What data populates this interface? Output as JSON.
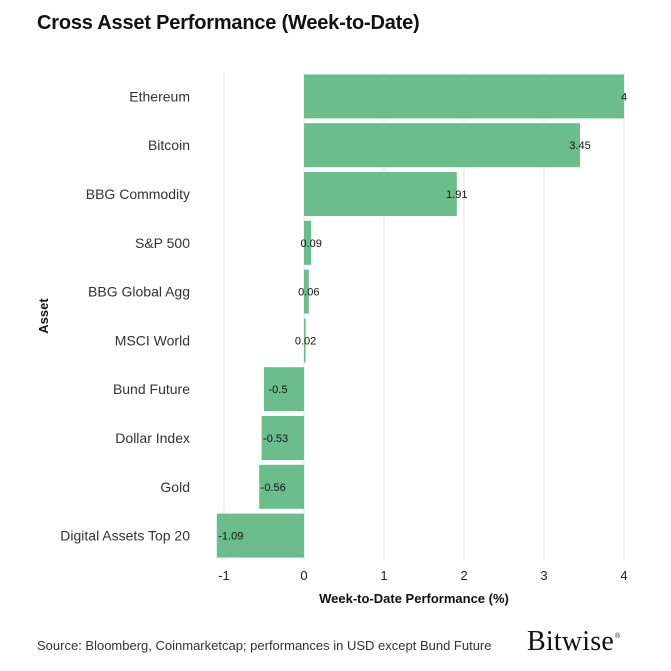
{
  "page": {
    "source": "Source: Bloomberg, Coinmarketcap; performances in USD except Bund Future",
    "brand": "Bitwise",
    "brand_mark": "®"
  },
  "chart_data": {
    "type": "bar",
    "orientation": "horizontal",
    "title": "Cross Asset Performance (Week-to-Date)",
    "xlabel": "Week-to-Date Performance (%)",
    "ylabel": "Asset",
    "categories": [
      "Ethereum",
      "Bitcoin",
      "BBG Commodity",
      "S&P 500",
      "BBG Global Agg",
      "MSCI World",
      "Bund Future",
      "Dollar Index",
      "Gold",
      "Digital Assets Top 20"
    ],
    "values": [
      4,
      3.45,
      1.91,
      0.09,
      0.06,
      0.02,
      -0.5,
      -0.53,
      -0.56,
      -1.09
    ],
    "data_labels": [
      "4",
      "3.45",
      "1.91",
      "0.09",
      "0.06",
      "0.02",
      "-0.5",
      "-0.53",
      "-0.56",
      "-1.09"
    ],
    "xlim": [
      -1.2,
      4
    ],
    "xticks": [
      -1,
      0,
      1,
      2,
      3,
      4
    ],
    "xtick_labels": [
      "-1",
      "0",
      "1",
      "2",
      "3",
      "4"
    ],
    "grid": "vertical",
    "legend": "none",
    "bar_color": "#6bbd8c",
    "grid_color": "#e3e3e3"
  }
}
